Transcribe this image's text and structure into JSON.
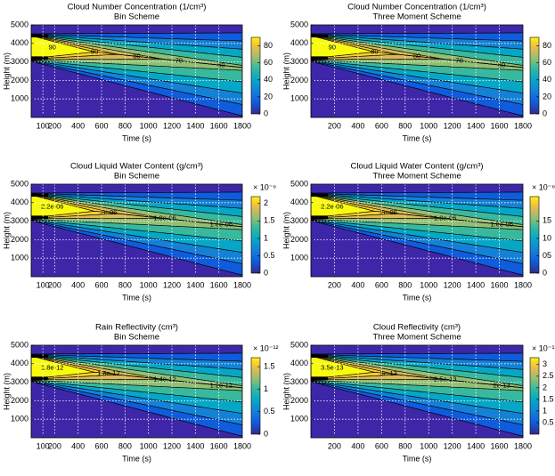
{
  "chart_data": [
    {
      "type": "contour",
      "title": "Cloud Number Concentration (1/cm³)",
      "subtitle": "Bin Scheme",
      "xlabel": "Time (s)",
      "ylabel": "Height (m)",
      "xlim": [
        0,
        1800
      ],
      "xticks": [
        100,
        200,
        400,
        600,
        800,
        1000,
        1200,
        1400,
        1600,
        1800
      ],
      "ylim": [
        0,
        5000
      ],
      "yticks": [
        1000,
        2000,
        3000,
        4000,
        5000
      ],
      "grid": true,
      "colorbar": {
        "clim": [
          0,
          90
        ],
        "ticks": [
          0,
          20,
          40,
          60,
          80
        ]
      },
      "contour_labels": [
        "90",
        "90",
        "80",
        "70",
        "60"
      ]
    },
    {
      "type": "contour",
      "title": "Cloud Number Concentration (1/cm³)",
      "subtitle": "Three Moment Scheme",
      "xlabel": "Time (s)",
      "ylabel": "Height (m)",
      "xlim": [
        0,
        1800
      ],
      "xticks": [
        200,
        400,
        600,
        800,
        1000,
        1200,
        1400,
        1600,
        1800
      ],
      "ylim": [
        0,
        5000
      ],
      "yticks": [
        1000,
        2000,
        3000,
        4000,
        5000
      ],
      "grid": true,
      "colorbar": {
        "clim": [
          0,
          90
        ],
        "ticks": [
          0,
          20,
          40,
          60,
          80
        ]
      },
      "contour_labels": [
        "90",
        "80",
        "80",
        "70",
        "60"
      ]
    },
    {
      "type": "contour",
      "title": "Cloud Liquid Water Content (g/cm³)",
      "subtitle": "Bin Scheme",
      "xlabel": "Time (s)",
      "ylabel": "Height (m)",
      "xlim": [
        0,
        1800
      ],
      "xticks": [
        100,
        200,
        400,
        600,
        800,
        1000,
        1200,
        1400,
        1600,
        1800
      ],
      "ylim": [
        0,
        5000
      ],
      "yticks": [
        1000,
        2000,
        3000,
        4000,
        5000
      ],
      "grid": true,
      "colorbar": {
        "label": "× 10⁻⁶",
        "clim": [
          0,
          2.2
        ],
        "ticks": [
          0,
          0.5,
          1,
          1.5,
          2
        ]
      },
      "contour_labels": [
        "2.2e-06",
        "2e-06",
        "1.8e-06",
        "1.6e-06"
      ]
    },
    {
      "type": "contour",
      "title": "Cloud Liquid Water Content (g/cm³)",
      "subtitle": "Three Moment Scheme",
      "xlabel": "Time (s)",
      "ylabel": "Height (m)",
      "xlim": [
        0,
        1800
      ],
      "xticks": [
        200,
        400,
        600,
        800,
        1000,
        1200,
        1400,
        1600,
        1800
      ],
      "ylim": [
        0,
        5000
      ],
      "yticks": [
        1000,
        2000,
        3000,
        4000,
        5000
      ],
      "grid": true,
      "colorbar": {
        "label": "× 10⁻⁶",
        "clim": [
          0,
          2.2
        ],
        "ticks": [
          0,
          {
            "value": 0.5,
            "label": "05"
          },
          {
            "value": 1,
            "label": "10"
          },
          {
            "value": 1.5,
            "label": "15"
          }
        ]
      },
      "contour_labels": [
        "2.2e-06",
        "2e-06",
        "1.8e-06",
        "1.6e-06"
      ]
    },
    {
      "type": "contour",
      "title": "Rain Reflectivity (cm³)",
      "subtitle": "Bin Scheme",
      "xlabel": "Time (s)",
      "ylabel": "Height (m)",
      "xlim": [
        0,
        1800
      ],
      "xticks": [
        100,
        200,
        400,
        600,
        800,
        1000,
        1200,
        1400,
        1600,
        1800
      ],
      "ylim": [
        0,
        5000
      ],
      "yticks": [
        1000,
        2000,
        3000,
        4000,
        5000
      ],
      "grid": true,
      "colorbar": {
        "label": "× 10⁻¹²",
        "clim": [
          0,
          1.7
        ],
        "ticks": [
          0,
          0.5,
          1,
          1.5
        ]
      },
      "contour_labels": [
        "1.8e-12",
        "1.6e-12",
        "1.4e-12",
        "1.2e-12"
      ]
    },
    {
      "type": "contour",
      "title": "Cloud Reflectivity  (cm³)",
      "subtitle": "Three Moment Scheme",
      "xlabel": "Time (s)",
      "ylabel": "Height (m)",
      "xlim": [
        0,
        1800
      ],
      "xticks": [
        200,
        400,
        600,
        800,
        1000,
        1200,
        1400,
        1600,
        1800
      ],
      "ylim": [
        0,
        5000
      ],
      "yticks": [
        1000,
        2000,
        3000,
        4000,
        5000
      ],
      "grid": true,
      "colorbar": {
        "label": "× 10⁻¹³",
        "clim": [
          0,
          3.3
        ],
        "ticks": [
          0.5,
          1,
          1.5,
          2,
          2.5,
          3
        ]
      },
      "contour_labels": [
        "3.5e-13",
        "3e-13",
        "2.5e-13",
        "2e-13"
      ]
    }
  ]
}
